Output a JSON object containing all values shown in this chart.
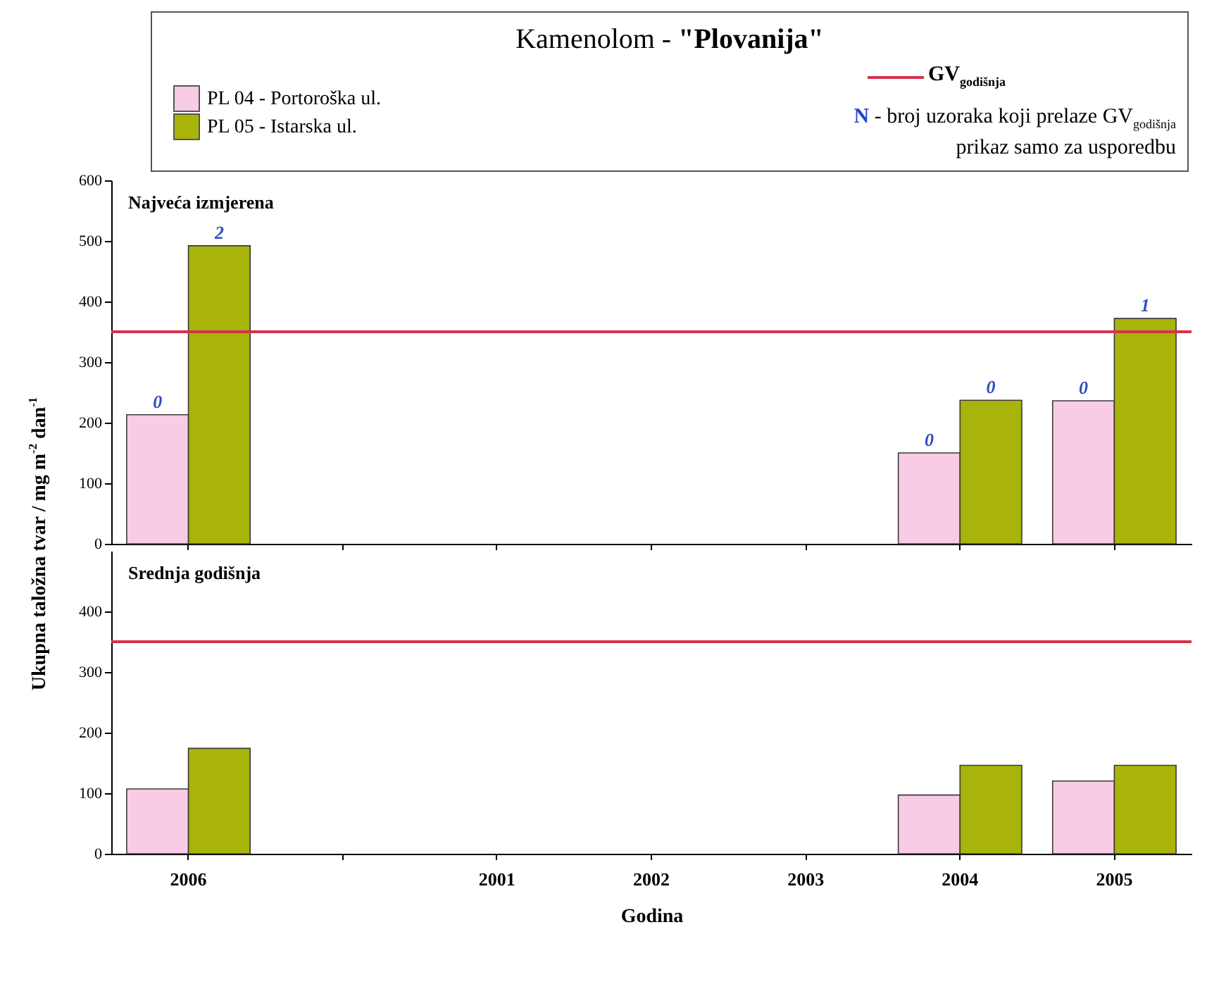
{
  "chart_data": [
    {
      "type": "bar",
      "title": "Kamenolom - \"Plovanija\"",
      "subtitle": "Najveća izmjerena",
      "ylabel": "Ukupna taložna tvar / mg m$^{-2}$ dan$^{-1}$",
      "categories": [
        "2006",
        null,
        "2001",
        "2002",
        "2003",
        "2004",
        "2005"
      ],
      "series": [
        {
          "name": "PL 04 - Portoroška ul.",
          "color": "#f8cce4",
          "values": [
            213,
            null,
            null,
            null,
            null,
            150,
            236
          ]
        },
        {
          "name": "PL 05 - Istarska ul.",
          "color": "#a8b40a",
          "values": [
            492,
            null,
            null,
            null,
            null,
            237,
            372
          ]
        }
      ],
      "ylim": [
        0,
        600
      ],
      "yticks": [
        0,
        100,
        200,
        300,
        400,
        500,
        600
      ],
      "tick_labels": "y",
      "legend": "top",
      "ref_lines": [
        {
          "axis": "y",
          "value": 350,
          "label": "GV$_{godišnja}$",
          "color": "#d8304c"
        }
      ],
      "annotations": [
        "N - broj uzoraka koji prelaze GV$_{godišnja}$",
        "prikaz samo za usporedbu",
        {
          "text": "0",
          "x": "2006",
          "y": 213
        },
        {
          "text": "2",
          "x": "2006",
          "y": 492
        },
        {
          "text": "0",
          "x": "2004",
          "y": 150
        },
        {
          "text": "0",
          "x": "2004",
          "y": 237
        },
        {
          "text": "0",
          "x": "2005",
          "y": 236
        },
        {
          "text": "1",
          "x": "2005",
          "y": 372
        }
      ]
    },
    {
      "type": "bar",
      "subtitle": "Srednja godišnja",
      "xlabel": "Godina",
      "categories": [
        "2006",
        null,
        "2001",
        "2002",
        "2003",
        "2004",
        "2005"
      ],
      "series": [
        {
          "color": "#f8cce4",
          "values": [
            107,
            null,
            null,
            null,
            null,
            97,
            120
          ]
        },
        {
          "color": "#a8b40a",
          "values": [
            174,
            null,
            null,
            null,
            null,
            146,
            146
          ]
        }
      ],
      "ylim": [
        0,
        500
      ],
      "yticks": [
        0,
        100,
        200,
        300,
        400
      ],
      "ref_lines": [
        {
          "axis": "y",
          "value": 350,
          "color": "#d8304c"
        }
      ]
    }
  ]
}
